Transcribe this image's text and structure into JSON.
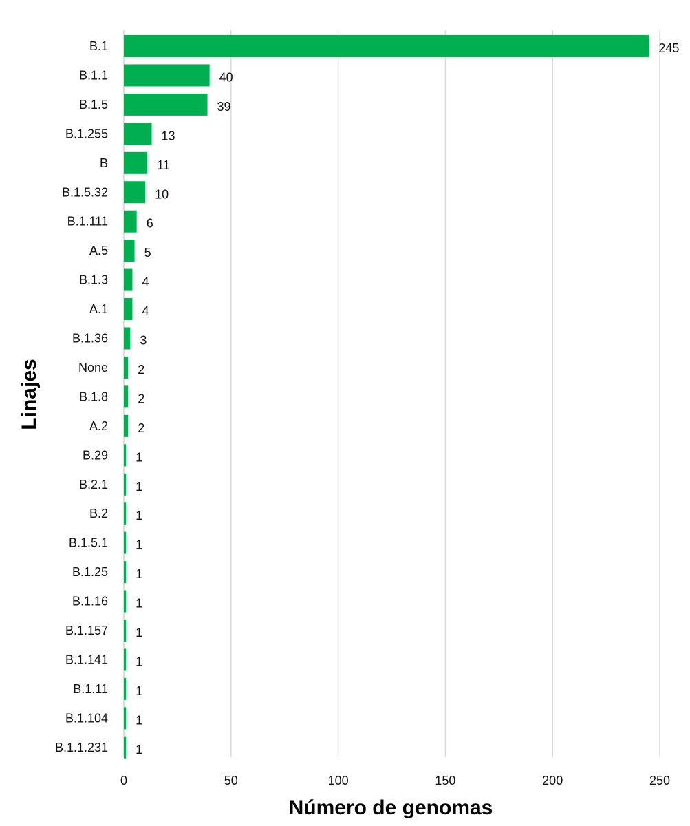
{
  "chart_data": {
    "type": "bar",
    "orientation": "horizontal",
    "xlabel": "Número de genomas",
    "ylabel": "Linajes",
    "xlim": [
      0,
      250
    ],
    "x_ticks": [
      0,
      50,
      100,
      150,
      200,
      250
    ],
    "grid": "vertical",
    "bar_color": "#00B050",
    "categories": [
      "B.1",
      "B.1.1",
      "B.1.5",
      "B.1.255",
      "B",
      "B.1.5.32",
      "B.1.111",
      "A.5",
      "B.1.3",
      "A.1",
      "B.1.36",
      "None",
      "B.1.8",
      "A.2",
      "B.29",
      "B.2.1",
      "B.2",
      "B.1.5.1",
      "B.1.25",
      "B.1.16",
      "B.1.157",
      "B.1.141",
      "B.1.11",
      "B.1.104",
      "B.1.1.231"
    ],
    "values": [
      245,
      40,
      39,
      13,
      11,
      10,
      6,
      5,
      4,
      4,
      3,
      2,
      2,
      2,
      1,
      1,
      1,
      1,
      1,
      1,
      1,
      1,
      1,
      1,
      1
    ]
  }
}
